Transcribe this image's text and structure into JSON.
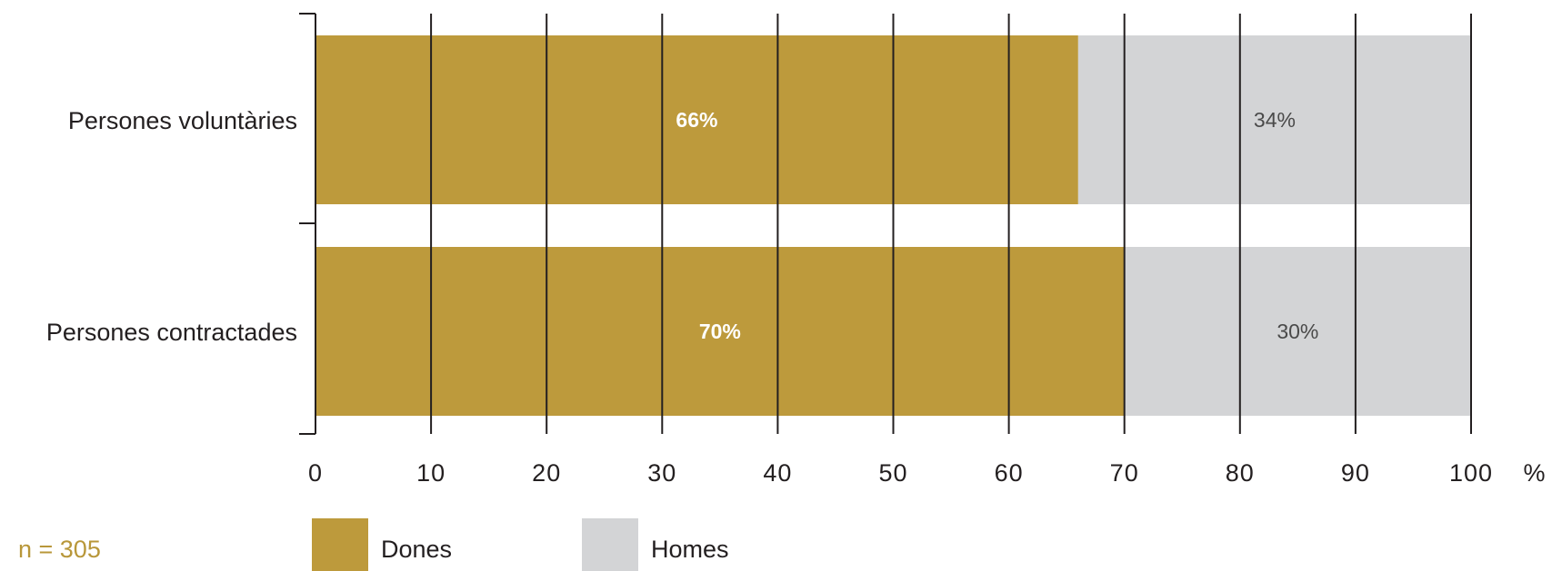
{
  "chart_data": {
    "type": "bar",
    "orientation": "horizontal",
    "stacked": true,
    "categories": [
      "Persones voluntàries",
      "Persones contractades"
    ],
    "series": [
      {
        "name": "Dones",
        "values": [
          66,
          70
        ],
        "labels": [
          "66%",
          "70%"
        ],
        "color": "#bd9a3c"
      },
      {
        "name": "Homes",
        "values": [
          34,
          30
        ],
        "labels": [
          "34%",
          "30%"
        ],
        "color": "#d3d4d6"
      }
    ],
    "xlim": [
      0,
      100
    ],
    "xticks": [
      "0",
      "10",
      "20",
      "30",
      "40",
      "50",
      "60",
      "70",
      "80",
      "90",
      "100"
    ],
    "xunit": "%",
    "grid": false,
    "legend_position": "bottom",
    "note": "n = 305"
  }
}
